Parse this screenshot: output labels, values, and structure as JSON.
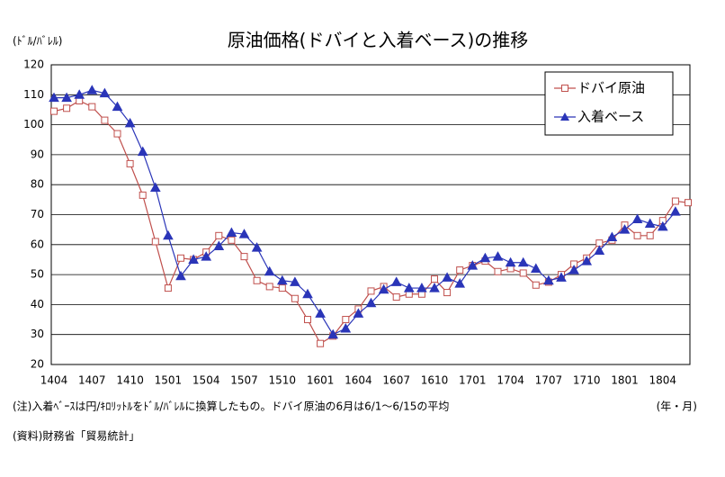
{
  "chart_data": {
    "type": "line",
    "title": "原油価格(ドバイと入着ベース)の推移",
    "y_axis_label": "(ﾄﾞﾙ/ﾊﾞﾚﾙ)",
    "x_axis_label": "(年・月)",
    "note": "(注)入着ﾍﾞｰｽは円/ｷﾛﾘｯﾄﾙをﾄﾞﾙ/ﾊﾞﾚﾙに換算したもの。ドバイ原油の6月は6/1～6/15の平均",
    "source": "(資料)財務省「貿易統計」",
    "categories": [
      "1404",
      null,
      null,
      "1407",
      null,
      null,
      "1410",
      null,
      null,
      "1501",
      null,
      null,
      "1504",
      null,
      null,
      "1507",
      null,
      null,
      "1510",
      null,
      null,
      "1601",
      null,
      null,
      "1604",
      null,
      null,
      "1607",
      null,
      null,
      "1610",
      null,
      null,
      "1701",
      null,
      null,
      "1704",
      null,
      null,
      "1707",
      null,
      null,
      "1710",
      null,
      null,
      "1801",
      null,
      null,
      "1804",
      null,
      null
    ],
    "series": [
      {
        "name": "ドバイ原油",
        "color": "#c0504d",
        "marker": "square",
        "values": [
          104.5,
          105.5,
          108,
          106,
          101.5,
          97,
          87,
          76.5,
          61,
          45.5,
          55.5,
          55,
          57.5,
          63,
          61.5,
          56,
          48,
          46,
          45.5,
          42,
          35,
          27,
          29.5,
          35,
          38.5,
          44.5,
          46,
          42.5,
          43.5,
          43.5,
          48.5,
          44,
          51.5,
          53,
          54.5,
          51,
          52,
          50.5,
          46.5,
          47.5,
          50,
          53.5,
          55.5,
          60.5,
          61.5,
          66.5,
          63,
          63,
          68,
          74.5,
          74
        ]
      },
      {
        "name": "入着ベース",
        "color": "#2a35b8",
        "marker": "triangle",
        "values": [
          109,
          109,
          110,
          111.5,
          110.5,
          106,
          100.5,
          91,
          79,
          63,
          49.5,
          55,
          56,
          59.5,
          64,
          63.5,
          59,
          51,
          48,
          47.5,
          43.5,
          37,
          30,
          32,
          37,
          40.5,
          45,
          47.5,
          45.5,
          45.5,
          45.5,
          49,
          47,
          53,
          55.5,
          56,
          54,
          54,
          52,
          48,
          49,
          51.5,
          54.5,
          58,
          62.5,
          65,
          68.5,
          67,
          66,
          71,
          null
        ]
      }
    ],
    "ylim": [
      20,
      120
    ],
    "yticks": [
      20,
      30,
      40,
      50,
      60,
      70,
      80,
      90,
      100,
      110,
      120
    ],
    "grid": true,
    "legend": "top-right"
  }
}
